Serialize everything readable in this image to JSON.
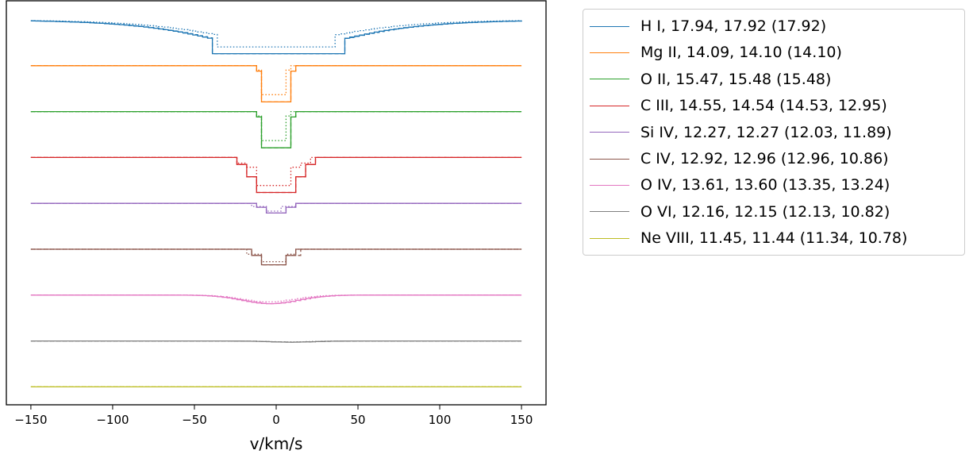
{
  "chart_data": {
    "type": "line",
    "xlabel": "v/km/s",
    "xlim": [
      -165,
      165
    ],
    "x_ticks": [
      -150,
      -100,
      -50,
      0,
      50,
      100,
      150
    ],
    "y_ticks_shown": false,
    "line_styles": [
      "solid (step)",
      "dashed",
      "dotted"
    ],
    "legend_position": "outside-right",
    "series": [
      {
        "name": "H I, 17.94, 17.92 (17.92)",
        "color": "#1f77b4",
        "row": 0,
        "profile": "broad_saturated",
        "center": 0,
        "half_width_core": 41,
        "depth_fraction": 0.87
      },
      {
        "name": "Mg II, 14.09, 14.10 (14.10)",
        "color": "#ff7f0e",
        "row": 1,
        "profile": "narrow",
        "center": -2,
        "half_width_core": 10,
        "depth_fraction": 0.93
      },
      {
        "name": "O II, 15.47, 15.48 (15.48)",
        "color": "#2ca02c",
        "row": 2,
        "profile": "narrow",
        "center": -2,
        "half_width_core": 10,
        "depth_fraction": 0.93
      },
      {
        "name": "C III, 14.55, 14.54 (14.53, 12.95)",
        "color": "#d62728",
        "row": 3,
        "profile": "stepped_deep",
        "center": -2,
        "half_width_core": 12,
        "depth_fraction": 0.9
      },
      {
        "name": "Si IV, 12.27, 12.27 (12.03, 11.89)",
        "color": "#9467bd",
        "row": 4,
        "profile": "shallow",
        "center": -2,
        "half_width_core": 6,
        "depth_fraction": 0.25
      },
      {
        "name": "C IV, 12.92, 12.96 (12.96, 10.86)",
        "color": "#8c564b",
        "row": 5,
        "profile": "shallow",
        "center": -3,
        "half_width_core": 8,
        "depth_fraction": 0.4
      },
      {
        "name": "O IV, 13.61, 13.60 (13.35, 13.24)",
        "color": "#e377c2",
        "row": 6,
        "profile": "broad_shallow",
        "center": -5,
        "half_width_core": 18,
        "depth_fraction": 0.22
      },
      {
        "name": "O VI, 12.16, 12.15 (12.13, 10.82)",
        "color": "#7f7f7f",
        "row": 7,
        "profile": "very_shallow",
        "center": 8,
        "half_width_core": 20,
        "depth_fraction": 0.03
      },
      {
        "name": "Ne VIII, 11.45, 11.44 (11.34, 10.78)",
        "color": "#bcbd22",
        "row": 8,
        "profile": "flat",
        "center": 0,
        "half_width_core": 0,
        "depth_fraction": 0.0
      }
    ]
  }
}
